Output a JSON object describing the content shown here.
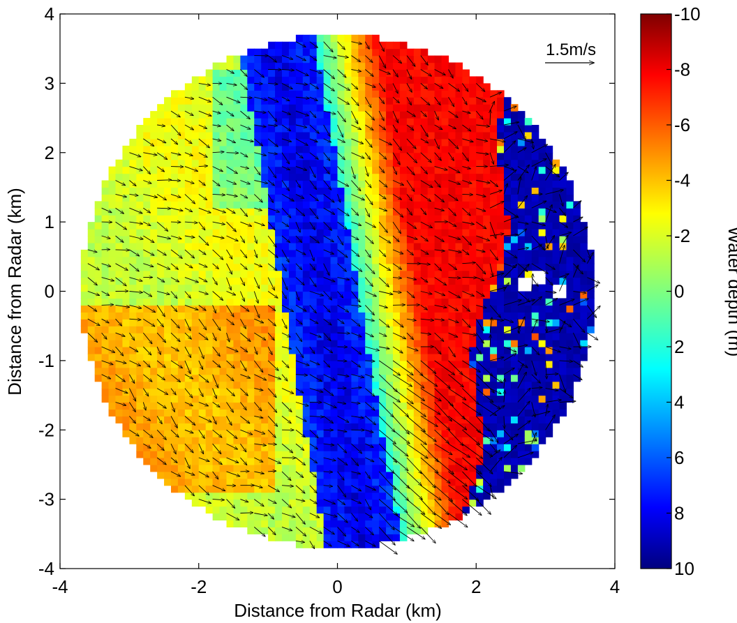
{
  "chart_data": {
    "type": "heatmap",
    "subtype": "radar-derived bathymetry with surface current vectors",
    "title": "",
    "xlabel": "Distance from Radar (km)",
    "ylabel": "Distance from Radar (km)",
    "xlim": [
      -4,
      4
    ],
    "ylim": [
      -4,
      4
    ],
    "xticks": [
      "-4",
      "-2",
      "0",
      "2",
      "4"
    ],
    "yticks": [
      "4",
      "3",
      "2",
      "1",
      "0",
      "-1",
      "-2",
      "-3",
      "-4"
    ],
    "grid": false,
    "domain_radius_km": 3.7,
    "cell_size_km": 0.1,
    "colorbar": {
      "label": "Water depth (m)",
      "colormap": "jet-reversed",
      "range": [
        -10,
        10
      ],
      "ticks": [
        "-10",
        "-8",
        "-6",
        "-4",
        "-2",
        "0",
        "2",
        "4",
        "6",
        "8",
        "10"
      ],
      "placement": "right"
    },
    "vector_scale": {
      "label": "1.5m/s",
      "speed_mps": 1.5,
      "placement": "top-right"
    },
    "depth_features_m": [
      {
        "feature": "blue channel",
        "x_km": [
          -0.9,
          0.4
        ],
        "depth": 8
      },
      {
        "feature": "red shoal",
        "x_km": [
          0,
          2.3
        ],
        "depth": -7
      },
      {
        "feature": "orange shoal",
        "x_km": [
          -3.6,
          -0.9
        ],
        "y_km": [
          -2.8,
          -0.2
        ],
        "depth": -4
      },
      {
        "feature": "deep region (noisy)",
        "x_km": [
          2.3,
          3.7
        ],
        "depth": 9
      },
      {
        "feature": "no data gaps",
        "points_km": [
          [
            2.7,
            0.1
          ],
          [
            3.2,
            0.0
          ],
          [
            2.9,
            0.2
          ]
        ]
      }
    ],
    "current_field_description": "mean flow toward south-east, strongest (~2 m/s) along the seaward edge"
  },
  "colors": {
    "background": "#ffffff",
    "axis": "#000000",
    "arrow": "#000000",
    "nodata": "#ffffff"
  }
}
